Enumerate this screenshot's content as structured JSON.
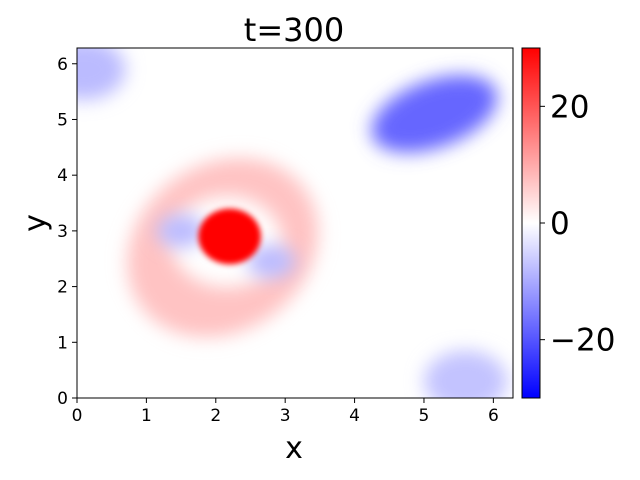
{
  "chart_data": {
    "type": "heatmap",
    "title": "t=300",
    "xlabel": "x",
    "ylabel": "y",
    "xlim": [
      0,
      6.283
    ],
    "ylim": [
      0,
      6.283
    ],
    "xticks": [
      "0",
      "1",
      "2",
      "3",
      "4",
      "5",
      "6"
    ],
    "yticks": [
      "0",
      "1",
      "2",
      "3",
      "4",
      "5",
      "6"
    ],
    "colorbar": {
      "ticks": [
        "−20",
        "0",
        "20"
      ],
      "range": [
        -30,
        30
      ],
      "colormap": "bwr"
    },
    "field_features": [
      {
        "kind": "positive vortex core",
        "center": [
          2.2,
          2.9
        ],
        "peak": 30
      },
      {
        "kind": "negative vortex",
        "center": [
          5.15,
          5.1
        ],
        "peak": -18
      },
      {
        "kind": "negative lobe",
        "center": [
          1.5,
          3.0
        ],
        "peak": -8
      },
      {
        "kind": "negative lobe",
        "center": [
          2.8,
          2.45
        ],
        "peak": -8
      },
      {
        "kind": "positive ring",
        "center": [
          2.1,
          2.7
        ],
        "peak": 7
      },
      {
        "kind": "negative corner",
        "center": [
          0.1,
          5.9
        ],
        "peak": -8
      },
      {
        "kind": "negative corner",
        "center": [
          5.6,
          0.3
        ],
        "peak": -7
      }
    ]
  }
}
